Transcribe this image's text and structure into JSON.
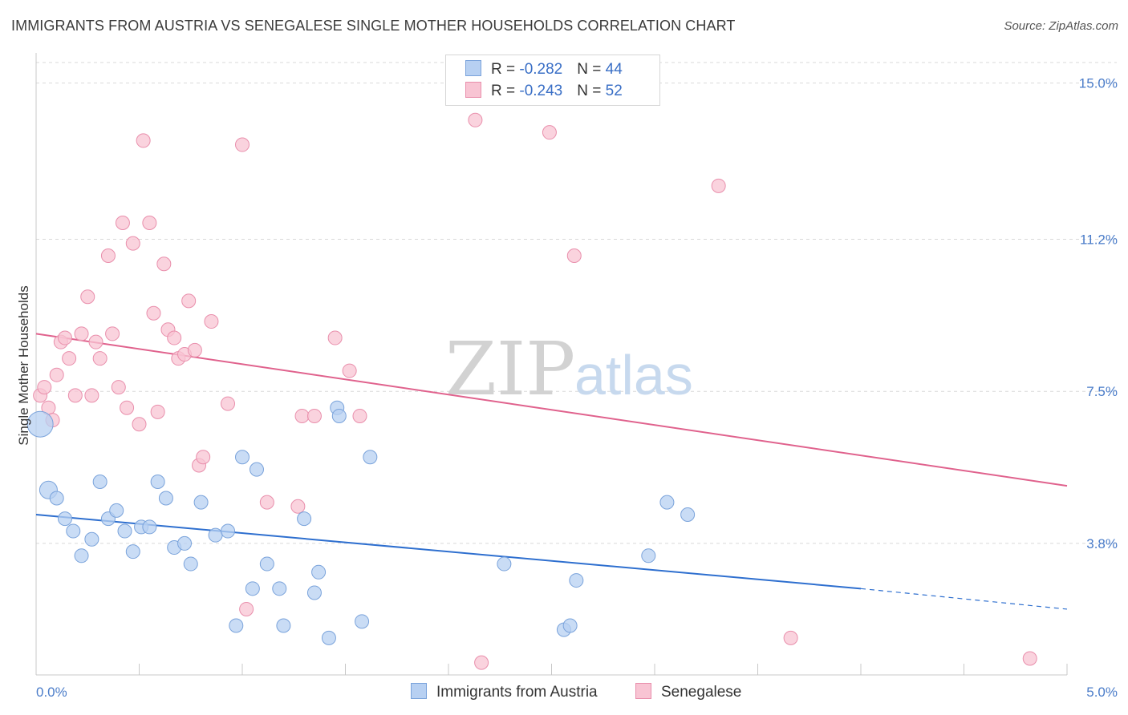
{
  "title": "IMMIGRANTS FROM AUSTRIA VS SENEGALESE SINGLE MOTHER HOUSEHOLDS CORRELATION CHART",
  "source": "Source: ZipAtlas.com",
  "watermark": {
    "zip": "ZIP",
    "atlas": "atlas"
  },
  "stats_legend": {
    "austria": {
      "r_label": "R = ",
      "r_value": "-0.282",
      "n_label": "N = ",
      "n_value": "44"
    },
    "senegalese": {
      "r_label": "R = ",
      "r_value": "-0.243",
      "n_label": "N = ",
      "n_value": "52"
    }
  },
  "colors": {
    "austria_fill": "#b7d0f2",
    "austria_stroke": "#7aa3db",
    "austria_line": "#2e6fcf",
    "senegalese_fill": "#f8c4d3",
    "senegalese_stroke": "#e98fac",
    "senegalese_line": "#e0628d",
    "tick_label": "#4a7cc9",
    "grid": "#d9d9d9"
  },
  "chart_data": {
    "type": "scatter",
    "title": "IMMIGRANTS FROM AUSTRIA VS SENEGALESE SINGLE MOTHER HOUSEHOLDS CORRELATION CHART",
    "xlabel": "",
    "ylabel": "Single Mother Households",
    "xlim": [
      0.0,
      5.0
    ],
    "ylim": [
      0.6,
      15.5
    ],
    "x_tick_labels": [
      "0.0%",
      "5.0%"
    ],
    "y_ticks": [
      3.8,
      7.5,
      11.2,
      15.0
    ],
    "y_tick_labels": [
      "3.8%",
      "7.5%",
      "11.2%",
      "15.0%"
    ],
    "grid": true,
    "legend_position": "bottom",
    "series": [
      {
        "name": "Immigrants from Austria",
        "points": [
          [
            0.02,
            6.7
          ],
          [
            0.06,
            5.1
          ],
          [
            0.1,
            4.9
          ],
          [
            0.14,
            4.4
          ],
          [
            0.18,
            4.1
          ],
          [
            0.22,
            3.5
          ],
          [
            0.27,
            3.9
          ],
          [
            0.31,
            5.3
          ],
          [
            0.35,
            4.4
          ],
          [
            0.39,
            4.6
          ],
          [
            0.43,
            4.1
          ],
          [
            0.47,
            3.6
          ],
          [
            0.51,
            4.2
          ],
          [
            0.55,
            4.2
          ],
          [
            0.59,
            5.3
          ],
          [
            0.63,
            4.9
          ],
          [
            0.67,
            3.7
          ],
          [
            0.72,
            3.8
          ],
          [
            0.75,
            3.3
          ],
          [
            0.8,
            4.8
          ],
          [
            0.87,
            4.0
          ],
          [
            0.93,
            4.1
          ],
          [
            0.97,
            1.8
          ],
          [
            1.0,
            5.9
          ],
          [
            1.05,
            2.7
          ],
          [
            1.07,
            5.6
          ],
          [
            1.12,
            3.3
          ],
          [
            1.18,
            2.7
          ],
          [
            1.2,
            1.8
          ],
          [
            1.3,
            4.4
          ],
          [
            1.35,
            2.6
          ],
          [
            1.37,
            3.1
          ],
          [
            1.42,
            1.5
          ],
          [
            1.46,
            7.1
          ],
          [
            1.47,
            6.9
          ],
          [
            1.58,
            1.9
          ],
          [
            1.62,
            5.9
          ],
          [
            2.27,
            3.3
          ],
          [
            2.56,
            1.7
          ],
          [
            2.59,
            1.8
          ],
          [
            2.62,
            2.9
          ],
          [
            2.97,
            3.5
          ],
          [
            3.06,
            4.8
          ],
          [
            3.16,
            4.5
          ]
        ]
      },
      {
        "name": "Senegalese",
        "points": [
          [
            0.02,
            7.4
          ],
          [
            0.04,
            7.6
          ],
          [
            0.06,
            7.1
          ],
          [
            0.08,
            6.8
          ],
          [
            0.1,
            7.9
          ],
          [
            0.12,
            8.7
          ],
          [
            0.14,
            8.8
          ],
          [
            0.16,
            8.3
          ],
          [
            0.19,
            7.4
          ],
          [
            0.22,
            8.9
          ],
          [
            0.25,
            9.8
          ],
          [
            0.27,
            7.4
          ],
          [
            0.29,
            8.7
          ],
          [
            0.31,
            8.3
          ],
          [
            0.35,
            10.8
          ],
          [
            0.37,
            8.9
          ],
          [
            0.4,
            7.6
          ],
          [
            0.42,
            11.6
          ],
          [
            0.44,
            7.1
          ],
          [
            0.47,
            11.1
          ],
          [
            0.5,
            6.7
          ],
          [
            0.52,
            13.6
          ],
          [
            0.55,
            11.6
          ],
          [
            0.57,
            9.4
          ],
          [
            0.59,
            7.0
          ],
          [
            0.62,
            10.6
          ],
          [
            0.64,
            9.0
          ],
          [
            0.67,
            8.8
          ],
          [
            0.69,
            8.3
          ],
          [
            0.72,
            8.4
          ],
          [
            0.74,
            9.7
          ],
          [
            0.77,
            8.5
          ],
          [
            0.79,
            5.7
          ],
          [
            0.81,
            5.9
          ],
          [
            0.85,
            9.2
          ],
          [
            0.93,
            7.2
          ],
          [
            1.0,
            13.5
          ],
          [
            1.02,
            2.2
          ],
          [
            1.12,
            4.8
          ],
          [
            1.27,
            4.7
          ],
          [
            1.29,
            6.9
          ],
          [
            1.35,
            6.9
          ],
          [
            1.45,
            8.8
          ],
          [
            1.52,
            8.0
          ],
          [
            1.57,
            6.9
          ],
          [
            2.13,
            14.1
          ],
          [
            2.16,
            0.9
          ],
          [
            2.49,
            13.8
          ],
          [
            2.61,
            10.8
          ],
          [
            3.31,
            12.5
          ],
          [
            3.66,
            1.5
          ],
          [
            4.82,
            1.0
          ]
        ]
      }
    ],
    "trend_lines": [
      {
        "series": "Immigrants from Austria",
        "x0": 0.0,
        "y0": 4.5,
        "x1": 4.0,
        "y1": 2.7,
        "dash_from": 4.0,
        "dash_to": 5.0,
        "dash_end_y": 2.2
      },
      {
        "series": "Senegalese",
        "x0": 0.0,
        "y0": 8.9,
        "x1": 5.0,
        "y1": 5.2
      }
    ]
  },
  "bottom_legend": {
    "austria": "Immigrants from Austria",
    "senegalese": "Senegalese"
  }
}
